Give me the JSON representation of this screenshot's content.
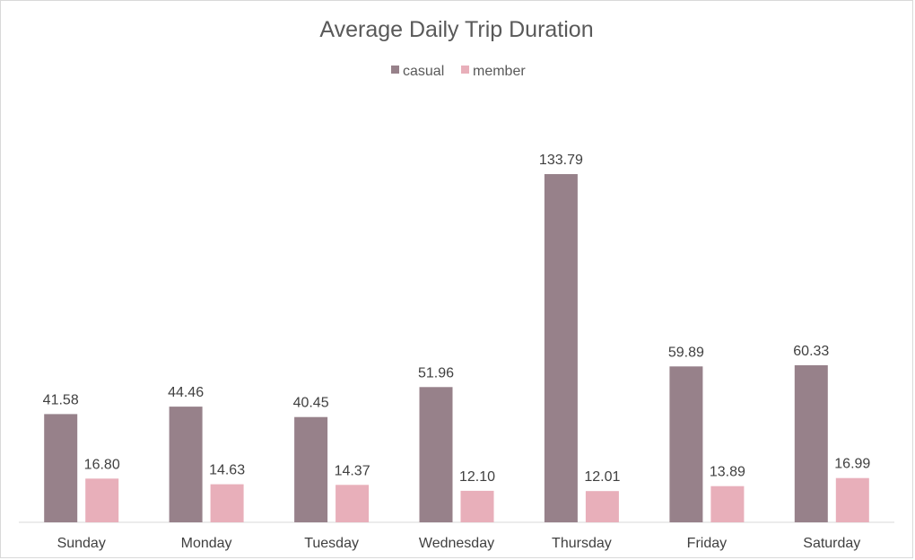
{
  "chart_data": {
    "type": "bar",
    "title": "Average Daily Trip Duration",
    "xlabel": "",
    "ylabel": "",
    "categories": [
      "Sunday",
      "Monday",
      "Tuesday",
      "Wednesday",
      "Thursday",
      "Friday",
      "Saturday"
    ],
    "series": [
      {
        "name": "casual",
        "color": "#97818a",
        "values": [
          41.58,
          44.46,
          40.45,
          51.96,
          133.79,
          59.89,
          60.33
        ],
        "labels": [
          "41.58",
          "44.46",
          "40.45",
          "51.96",
          "133.79",
          "59.89",
          "60.33"
        ]
      },
      {
        "name": "member",
        "color": "#e8afba",
        "values": [
          16.8,
          14.63,
          14.37,
          12.1,
          12.01,
          13.89,
          16.99
        ],
        "labels": [
          "16.80",
          "14.63",
          "14.37",
          "12.10",
          "12.01",
          "13.89",
          "16.99"
        ]
      }
    ],
    "ylim": [
      0,
      140
    ],
    "grid": false,
    "legend_position": "top-center",
    "axis_color": "#d9d9d9"
  }
}
